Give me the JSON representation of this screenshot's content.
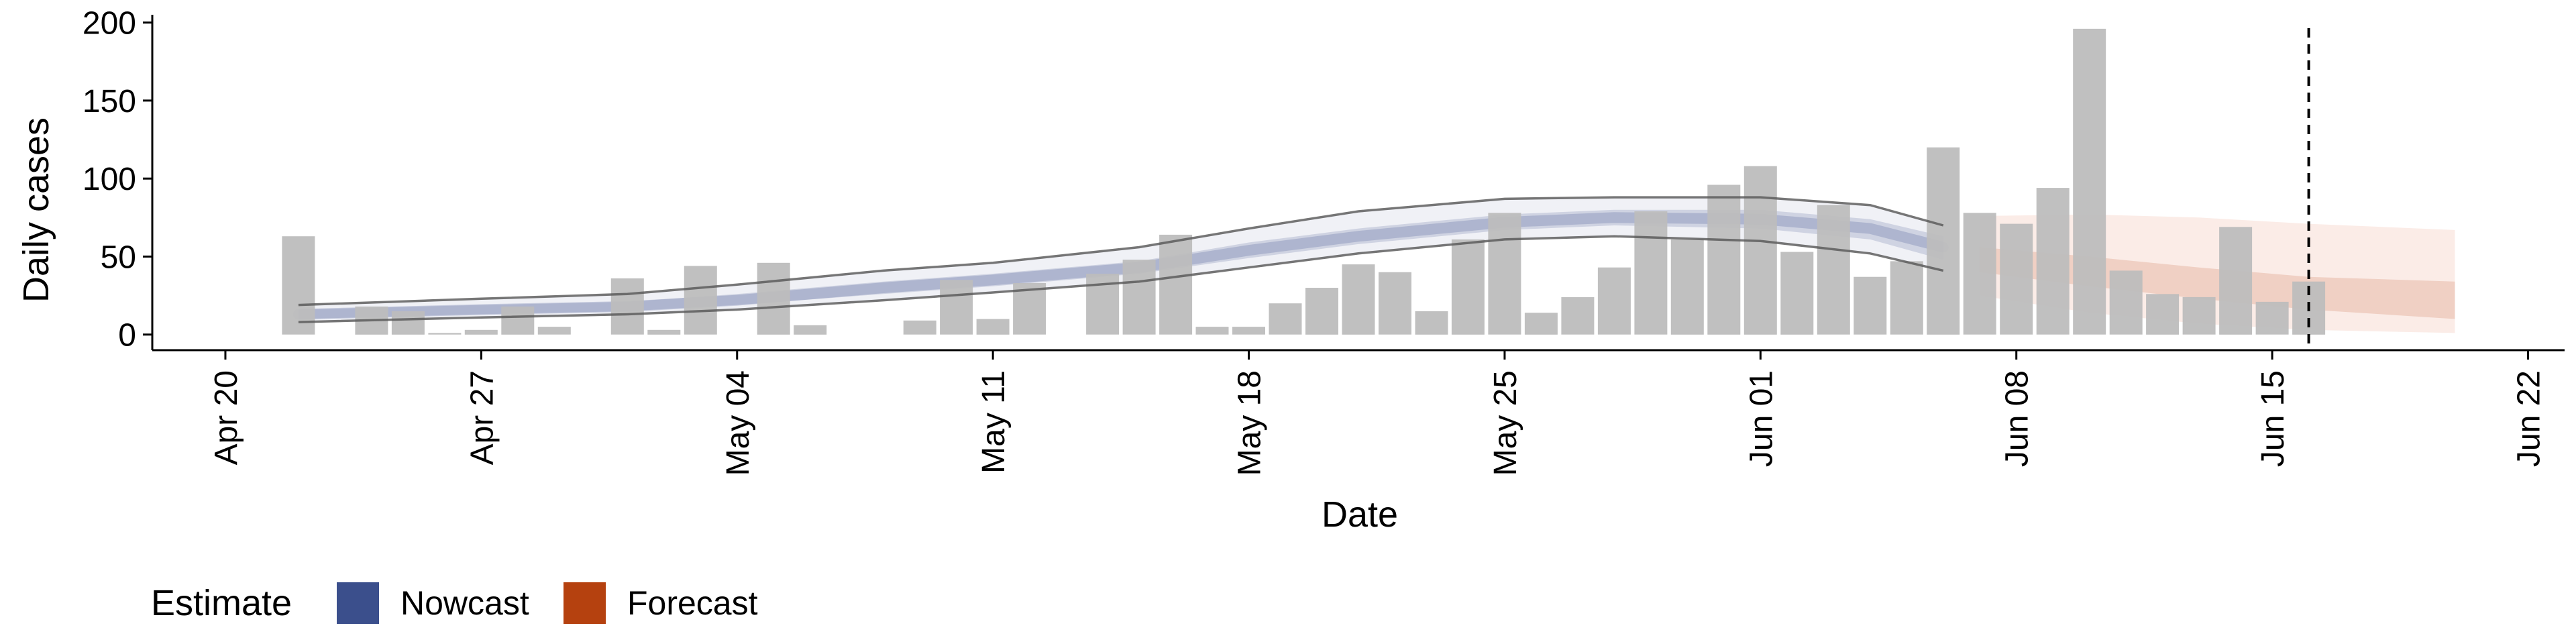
{
  "chart_data": {
    "type": "bar",
    "xlabel": "Date",
    "ylabel": "Daily cases",
    "ylim": [
      -10,
      205
    ],
    "yticks": [
      0,
      50,
      100,
      150,
      200
    ],
    "xlim": [
      "2020-04-18",
      "2020-06-23"
    ],
    "xticks": [
      "2020-04-20",
      "2020-04-27",
      "2020-05-04",
      "2020-05-11",
      "2020-05-18",
      "2020-05-25",
      "2020-06-01",
      "2020-06-08",
      "2020-06-15",
      "2020-06-22"
    ],
    "xtick_labels": [
      "Apr 20",
      "Apr 27",
      "May 04",
      "May 11",
      "May 18",
      "May 25",
      "Jun 01",
      "Jun 08",
      "Jun 15",
      "Jun 22"
    ],
    "grid": false,
    "legend": {
      "title": "Estimate",
      "position": "bottom-left",
      "items": [
        {
          "label": "Nowcast",
          "color": "#3b4f8c"
        },
        {
          "label": "Forecast",
          "color": "#b5410f"
        }
      ]
    },
    "bar_color": "#bdbdbd",
    "vline_date": "2020-06-16",
    "bars": {
      "dates": [
        "2020-04-22",
        "2020-04-23",
        "2020-04-24",
        "2020-04-25",
        "2020-04-26",
        "2020-04-27",
        "2020-04-28",
        "2020-04-29",
        "2020-04-30",
        "2020-05-01",
        "2020-05-02",
        "2020-05-03",
        "2020-05-04",
        "2020-05-05",
        "2020-05-06",
        "2020-05-07",
        "2020-05-08",
        "2020-05-09",
        "2020-05-10",
        "2020-05-11",
        "2020-05-12",
        "2020-05-13",
        "2020-05-14",
        "2020-05-15",
        "2020-05-16",
        "2020-05-17",
        "2020-05-18",
        "2020-05-19",
        "2020-05-20",
        "2020-05-21",
        "2020-05-22",
        "2020-05-23",
        "2020-05-24",
        "2020-05-25",
        "2020-05-26",
        "2020-05-27",
        "2020-05-28",
        "2020-05-29",
        "2020-05-30",
        "2020-05-31",
        "2020-06-01",
        "2020-06-02",
        "2020-06-03",
        "2020-06-04",
        "2020-06-05",
        "2020-06-06",
        "2020-06-07",
        "2020-06-08",
        "2020-06-09",
        "2020-06-10",
        "2020-06-11",
        "2020-06-12",
        "2020-06-13",
        "2020-06-14",
        "2020-06-15",
        "2020-06-16"
      ],
      "values": [
        63,
        0,
        18,
        15,
        1,
        3,
        18,
        5,
        0,
        36,
        3,
        44,
        0,
        46,
        6,
        0,
        0,
        9,
        35,
        10,
        33,
        0,
        39,
        48,
        64,
        5,
        5,
        20,
        30,
        45,
        40,
        15,
        61,
        78,
        14,
        24,
        43,
        79,
        61,
        96,
        108,
        53,
        83,
        37,
        47,
        120,
        78,
        71,
        94,
        196,
        41,
        26,
        24,
        69,
        21,
        34
      ]
    },
    "nowcast": {
      "dates": [
        "2020-04-22",
        "2020-04-27",
        "2020-05-01",
        "2020-05-04",
        "2020-05-08",
        "2020-05-11",
        "2020-05-15",
        "2020-05-18",
        "2020-05-21",
        "2020-05-25",
        "2020-05-28",
        "2020-06-01",
        "2020-06-04",
        "2020-06-06"
      ],
      "median": [
        13,
        16,
        18,
        22,
        30,
        35,
        43,
        54,
        63,
        72,
        75,
        74,
        68,
        56
      ],
      "inner_lower": [
        10,
        13,
        15,
        19,
        26,
        31,
        39,
        49,
        58,
        67,
        70,
        68,
        61,
        48
      ],
      "inner_upper": [
        16,
        19,
        21,
        26,
        34,
        39,
        47,
        59,
        68,
        77,
        80,
        80,
        74,
        63
      ],
      "outer_lower": [
        8,
        11,
        13,
        16,
        22,
        27,
        34,
        43,
        52,
        61,
        63,
        60,
        52,
        41
      ],
      "outer_upper": [
        19,
        23,
        26,
        32,
        41,
        46,
        56,
        68,
        79,
        87,
        88,
        88,
        83,
        70
      ]
    },
    "forecast": {
      "dates": [
        "2020-06-07",
        "2020-06-10",
        "2020-06-13",
        "2020-06-16",
        "2020-06-20"
      ],
      "inner_lower": [
        40,
        31,
        23,
        16,
        10
      ],
      "inner_upper": [
        56,
        50,
        43,
        37,
        34
      ],
      "outer_lower": [
        25,
        14,
        7,
        3,
        1
      ],
      "outer_upper": [
        76,
        77,
        75,
        71,
        67
      ]
    }
  }
}
